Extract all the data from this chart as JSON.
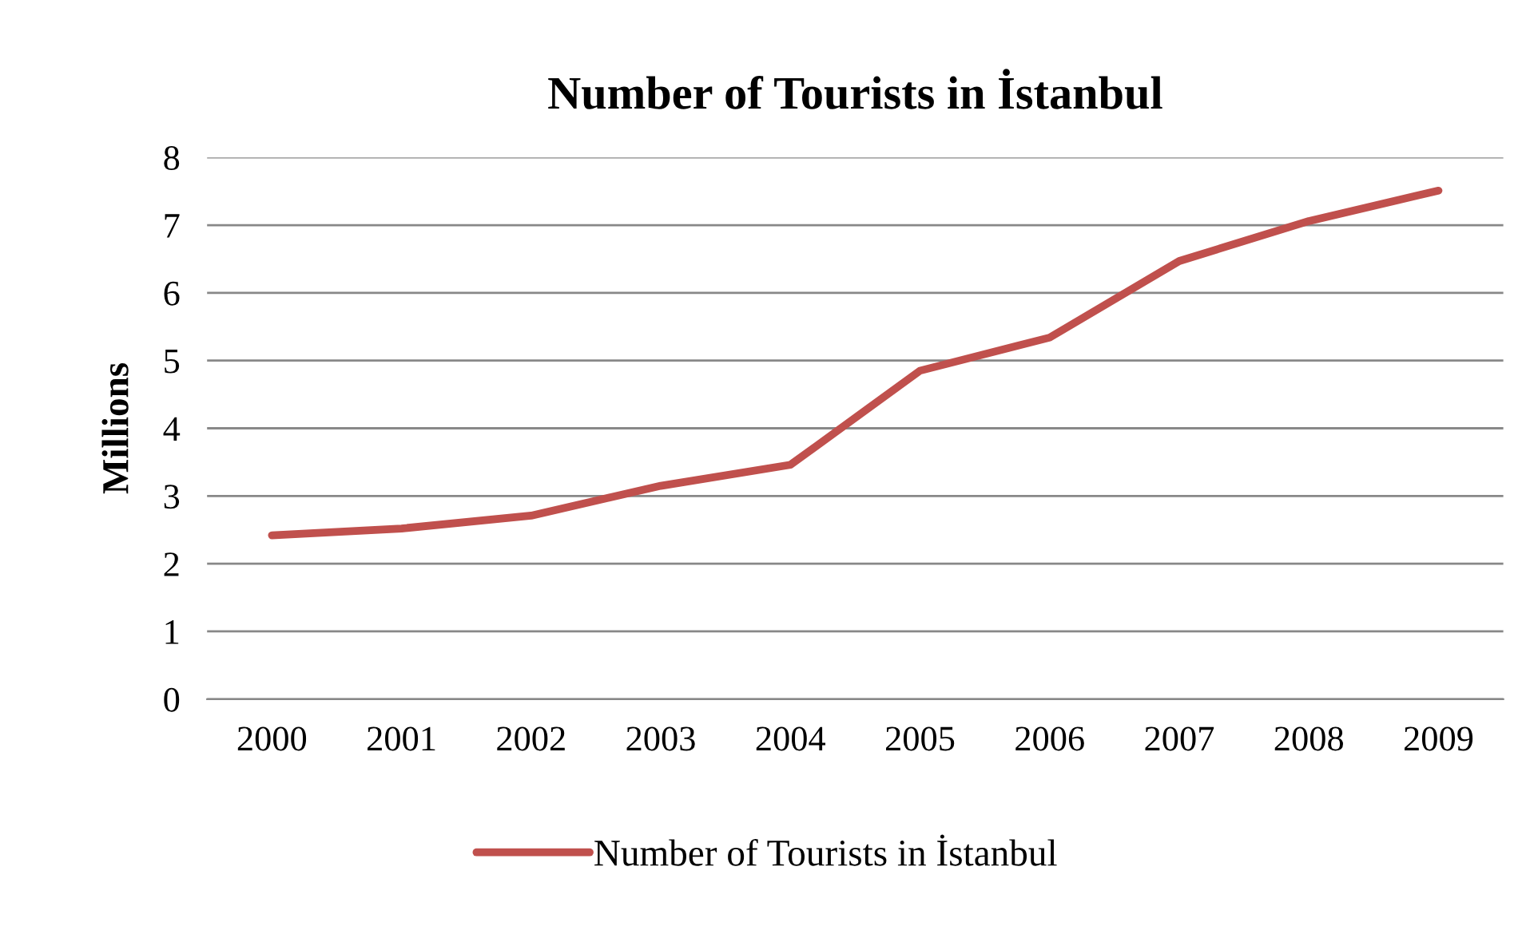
{
  "chart_data": {
    "type": "line",
    "title": "Number of Tourists in İstanbul",
    "ylabel": "Millions",
    "categories": [
      "2000",
      "2001",
      "2002",
      "2003",
      "2004",
      "2005",
      "2006",
      "2007",
      "2008",
      "2009"
    ],
    "series": [
      {
        "name": "Number of Tourists in İstanbul",
        "color": "#c0504d",
        "values": [
          2.42,
          2.52,
          2.71,
          3.15,
          3.46,
          4.85,
          5.34,
          6.47,
          7.06,
          7.51
        ]
      }
    ],
    "ylim": [
      0,
      8
    ],
    "yticks": [
      0,
      1,
      2,
      3,
      4,
      5,
      6,
      7,
      8
    ],
    "grid": "y",
    "legend": "bottom",
    "marker": "none",
    "line_style": "solid"
  }
}
